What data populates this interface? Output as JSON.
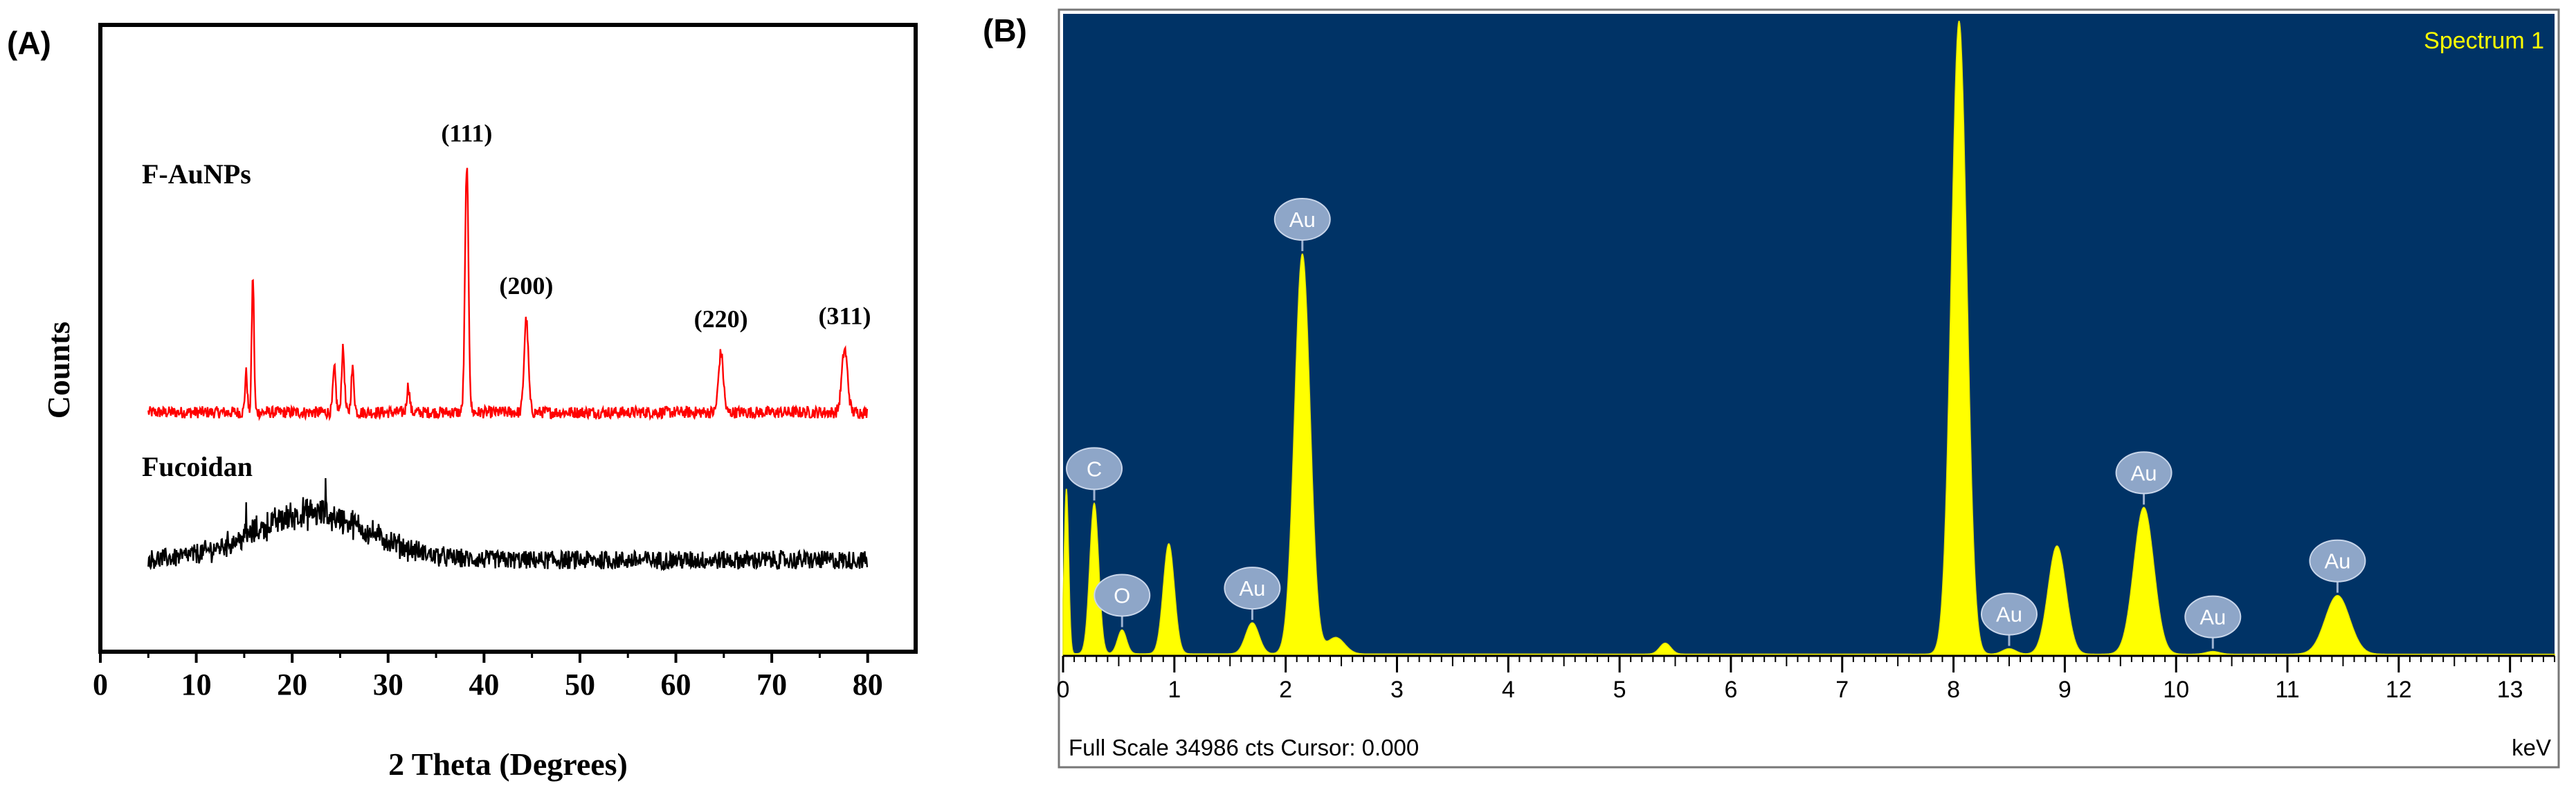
{
  "panels": {
    "a_label": "(A)",
    "b_label": "(B)"
  },
  "chart_data": [
    {
      "type": "line",
      "panel": "A",
      "xlabel": "2 Theta (Degrees)",
      "ylabel": "Counts",
      "xlim": [
        0,
        85
      ],
      "xticks": [
        0,
        10,
        20,
        30,
        40,
        50,
        60,
        70,
        80
      ],
      "yticks_shown": false,
      "series": [
        {
          "name": "F-AuNPs",
          "color": "#ff0000",
          "baseline": 0.5,
          "noise": 0.18,
          "x_range": [
            5,
            80
          ],
          "peaks": [
            {
              "x": 15.9,
              "h": 4.1,
              "w": 0.12
            },
            {
              "x": 15.2,
              "h": 1.2,
              "w": 0.12
            },
            {
              "x": 24.4,
              "h": 1.3,
              "w": 0.15
            },
            {
              "x": 25.3,
              "h": 1.9,
              "w": 0.15
            },
            {
              "x": 26.3,
              "h": 1.3,
              "w": 0.15
            },
            {
              "x": 32.1,
              "h": 0.8,
              "w": 0.15
            },
            {
              "x": 38.2,
              "h": 7.4,
              "w": 0.18
            },
            {
              "x": 44.4,
              "h": 2.8,
              "w": 0.22
            },
            {
              "x": 64.7,
              "h": 1.8,
              "w": 0.25
            },
            {
              "x": 77.6,
              "h": 1.9,
              "w": 0.3
            }
          ],
          "annotations": [
            {
              "text": "(111)",
              "x": 38.2
            },
            {
              "text": "(200)",
              "x": 44.4
            },
            {
              "text": "(220)",
              "x": 64.7
            },
            {
              "text": "(311)",
              "x": 77.6
            }
          ]
        },
        {
          "name": "Fucoidan",
          "color": "#000000",
          "baseline": 0.8,
          "noise": 0.28,
          "x_range": [
            5,
            80
          ],
          "hump": {
            "center": 22,
            "height": 1.4,
            "width": 6
          },
          "spikes": [
            {
              "x": 23.5,
              "h": 1.2
            },
            {
              "x": 15.2,
              "h": 0.7
            }
          ]
        }
      ]
    },
    {
      "type": "area",
      "panel": "B",
      "title": "Spectrum 1",
      "xlabel": "keV",
      "xlim": [
        0,
        13.4
      ],
      "ylim": [
        0,
        34986
      ],
      "xticks": [
        0,
        1,
        2,
        3,
        4,
        5,
        6,
        7,
        8,
        9,
        10,
        11,
        12,
        13
      ],
      "footer": "Full Scale 34986 cts Cursor: 0.000",
      "background": "#003366",
      "fill_color": "#ffff00",
      "peaks": [
        {
          "x": 0.03,
          "y": 9000,
          "w": 0.02
        },
        {
          "x": 0.28,
          "y": 8200,
          "w": 0.04
        },
        {
          "x": 0.53,
          "y": 1300,
          "w": 0.04
        },
        {
          "x": 0.95,
          "y": 6000,
          "w": 0.05
        },
        {
          "x": 1.7,
          "y": 1700,
          "w": 0.06
        },
        {
          "x": 2.15,
          "y": 21800,
          "w": 0.07
        },
        {
          "x": 2.45,
          "y": 900,
          "w": 0.08
        },
        {
          "x": 5.41,
          "y": 600,
          "w": 0.05
        },
        {
          "x": 8.05,
          "y": 34500,
          "w": 0.07
        },
        {
          "x": 8.5,
          "y": 300,
          "w": 0.06
        },
        {
          "x": 8.93,
          "y": 5900,
          "w": 0.08
        },
        {
          "x": 9.71,
          "y": 8000,
          "w": 0.09
        },
        {
          "x": 10.33,
          "y": 150,
          "w": 0.06
        },
        {
          "x": 11.45,
          "y": 3200,
          "w": 0.11
        }
      ],
      "element_labels": [
        {
          "text": "C",
          "x": 0.28,
          "y": 8200
        },
        {
          "text": "O",
          "x": 0.53,
          "y": 1300
        },
        {
          "text": "Au",
          "x": 1.7,
          "y": 1700
        },
        {
          "text": "Au",
          "x": 2.15,
          "y": 21800
        },
        {
          "text": "Au",
          "x": 8.5,
          "y": 300
        },
        {
          "text": "Au",
          "x": 9.71,
          "y": 8000
        },
        {
          "text": "Au",
          "x": 10.33,
          "y": 150
        },
        {
          "text": "Au",
          "x": 11.45,
          "y": 3200
        }
      ]
    }
  ]
}
